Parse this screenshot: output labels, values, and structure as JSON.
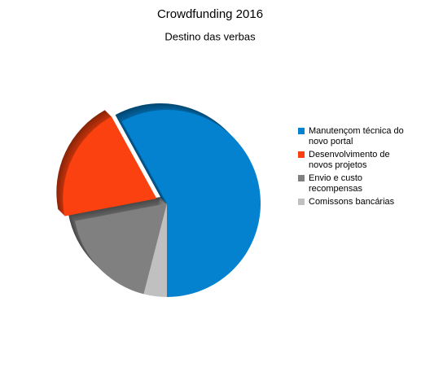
{
  "chart_data": {
    "type": "pie",
    "title": "Crowdfunding 2016",
    "subtitle": "Destino das verbas",
    "series": [
      {
        "name": "Manutençom técnica do novo portal",
        "color": "#0481cf",
        "values": [
          58
        ]
      },
      {
        "name": "Desenvolvimento de novos projetos",
        "color": "#fa410f",
        "values": [
          20
        ]
      },
      {
        "name": "Envio e custo recompensas",
        "color": "#808080",
        "values": [
          18
        ]
      },
      {
        "name": "Comissons bancárias",
        "color": "#c0c0c0",
        "values": [
          4
        ]
      }
    ],
    "legend": "right"
  }
}
